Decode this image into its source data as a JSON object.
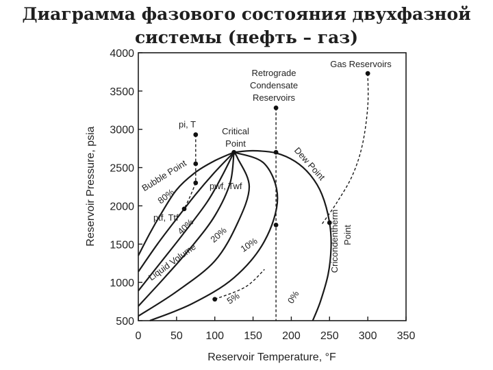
{
  "title_line1": "Диаграмма фазового состояния двухфазной",
  "title_line2": "системы (нефть – газ)",
  "chart_data": {
    "type": "line",
    "xlabel": "Reservoir Temperature, °F",
    "ylabel": "Reservoir Pressure, psia",
    "xlim": [
      0,
      350
    ],
    "ylim": [
      500,
      4000
    ],
    "xticks": [
      0,
      50,
      100,
      150,
      200,
      250,
      300,
      350
    ],
    "yticks": [
      500,
      1000,
      1500,
      2000,
      2500,
      3000,
      3500,
      4000
    ],
    "grid": false,
    "annotations": {
      "gas_reservoirs": "Gas Reservoirs",
      "retrograde_1": "Retrograde",
      "retrograde_2": "Condensate",
      "retrograde_3": "Reservoirs",
      "critical_1": "Critical",
      "critical_2": "Point",
      "pi_t": "pi, T",
      "pwf_twf": "pwf, Twf",
      "ptf_ttf": "ptf, Ttf",
      "bubble_point": "Bubble Point",
      "dew_point": "Dew Point",
      "cricondentherm_1": "Cricondentherm",
      "cricondentherm_2": "Point",
      "liquid_volume": "Liquid Volume",
      "pct_80": "80%",
      "pct_40": "40%",
      "pct_20": "20%",
      "pct_10": "10%",
      "pct_5": "5%",
      "pct_0": "0%"
    },
    "series": [
      {
        "id": "bubble_point_curve",
        "points": [
          [
            0,
            1350
          ],
          [
            15,
            1640
          ],
          [
            30,
            1900
          ],
          [
            50,
            2210
          ],
          [
            75,
            2440
          ],
          [
            100,
            2590
          ],
          [
            125,
            2700
          ]
        ]
      },
      {
        "id": "dew_point_curve",
        "points": [
          [
            125,
            2700
          ],
          [
            150,
            2720
          ],
          [
            180,
            2690
          ],
          [
            205,
            2580
          ],
          [
            225,
            2400
          ],
          [
            240,
            2150
          ],
          [
            250,
            1780
          ],
          [
            252,
            1450
          ],
          [
            248,
            1100
          ],
          [
            238,
            750
          ],
          [
            228,
            500
          ]
        ]
      },
      {
        "id": "liquid_80",
        "points": [
          [
            0,
            1140
          ],
          [
            25,
            1500
          ],
          [
            50,
            1830
          ],
          [
            75,
            2150
          ],
          [
            100,
            2440
          ],
          [
            125,
            2700
          ]
        ]
      },
      {
        "id": "liquid_40",
        "points": [
          [
            0,
            890
          ],
          [
            30,
            1270
          ],
          [
            60,
            1650
          ],
          [
            90,
            2050
          ],
          [
            110,
            2400
          ],
          [
            125,
            2700
          ]
        ]
      },
      {
        "id": "liquid_20",
        "points": [
          [
            0,
            690
          ],
          [
            35,
            1070
          ],
          [
            70,
            1470
          ],
          [
            100,
            1870
          ],
          [
            120,
            2300
          ],
          [
            125,
            2700
          ]
        ]
      },
      {
        "id": "liquid_10",
        "points": [
          [
            0,
            560
          ],
          [
            50,
            880
          ],
          [
            100,
            1280
          ],
          [
            130,
            1780
          ],
          [
            145,
            2250
          ],
          [
            130,
            2620
          ],
          [
            125,
            2700
          ]
        ]
      },
      {
        "id": "liquid_5",
        "points": [
          [
            15,
            500
          ],
          [
            70,
            720
          ],
          [
            125,
            1060
          ],
          [
            165,
            1540
          ],
          [
            182,
            2100
          ],
          [
            165,
            2550
          ],
          [
            125,
            2700
          ]
        ]
      },
      {
        "id": "isothermal_depletion",
        "points": [
          [
            180,
            3280
          ],
          [
            180,
            2700
          ],
          [
            180,
            1750
          ],
          [
            180,
            500
          ]
        ]
      },
      {
        "id": "pi_to_pwf",
        "points": [
          [
            75,
            2930
          ],
          [
            75,
            2550
          ],
          [
            75,
            2300
          ]
        ]
      },
      {
        "id": "pwf_to_ptf",
        "points": [
          [
            75,
            2300
          ],
          [
            68,
            2130
          ],
          [
            60,
            1960
          ]
        ]
      },
      {
        "id": "gas_path",
        "points": [
          [
            300,
            3730
          ],
          [
            300,
            3300
          ],
          [
            293,
            2800
          ],
          [
            280,
            2400
          ],
          [
            260,
            2050
          ],
          [
            240,
            1760
          ]
        ]
      },
      {
        "id": "lower_path",
        "points": [
          [
            100,
            780
          ],
          [
            140,
            940
          ],
          [
            165,
            1170
          ]
        ]
      }
    ],
    "markers": [
      [
        75,
        2930
      ],
      [
        75,
        2550
      ],
      [
        75,
        2300
      ],
      [
        60,
        1960
      ],
      [
        125,
        2700
      ],
      [
        180,
        2700
      ],
      [
        180,
        3280
      ],
      [
        180,
        1750
      ],
      [
        250,
        1780
      ],
      [
        300,
        3730
      ],
      [
        100,
        780
      ]
    ]
  }
}
